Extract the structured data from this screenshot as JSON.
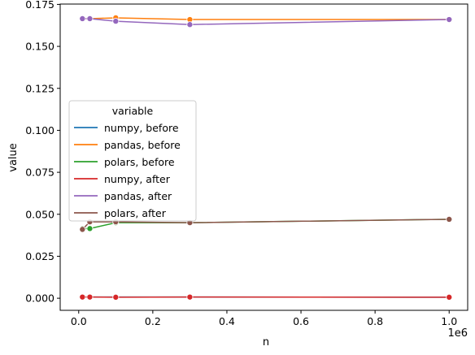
{
  "chart_data": {
    "type": "line",
    "title": "",
    "xlabel": "n",
    "ylabel": "value",
    "x_offset_label": "1e6",
    "xlim": [
      -50000,
      1050000
    ],
    "ylim": [
      -0.0072,
      0.1752
    ],
    "x_ticks": [
      0,
      0.2,
      0.4,
      0.6,
      0.8,
      1.0
    ],
    "x_tick_labels": [
      "0.0",
      "0.2",
      "0.4",
      "0.6",
      "0.8",
      "1.0"
    ],
    "y_ticks": [
      0,
      0.025,
      0.05,
      0.075,
      0.1,
      0.125,
      0.15,
      0.175
    ],
    "y_tick_labels": [
      "0.000",
      "0.025",
      "0.050",
      "0.075",
      "0.100",
      "0.125",
      "0.150",
      "0.175"
    ],
    "grid": false,
    "legend": {
      "title": "variable",
      "placement": "center-left"
    },
    "x": [
      10000,
      30000,
      100000,
      300000,
      1000000
    ],
    "series": [
      {
        "name": "numpy, before",
        "color": "#1f77b4",
        "values": [
          0.0007,
          0.0007,
          0.0007,
          0.0007,
          0.0006
        ]
      },
      {
        "name": "pandas, before",
        "color": "#ff7f0e",
        "values": [
          0.1665,
          0.1665,
          0.167,
          0.166,
          0.166
        ]
      },
      {
        "name": "polars, before",
        "color": "#2ca02c",
        "values": [
          0.0415,
          0.0415,
          0.045,
          0.045,
          0.047
        ]
      },
      {
        "name": "numpy, after",
        "color": "#d62728",
        "values": [
          0.0007,
          0.0007,
          0.0006,
          0.0007,
          0.0006
        ]
      },
      {
        "name": "pandas, after",
        "color": "#9467bd",
        "values": [
          0.1665,
          0.1665,
          0.165,
          0.163,
          0.166
        ]
      },
      {
        "name": "polars, after",
        "color": "#8c564b",
        "values": [
          0.041,
          0.0455,
          0.0455,
          0.045,
          0.047
        ]
      }
    ]
  }
}
